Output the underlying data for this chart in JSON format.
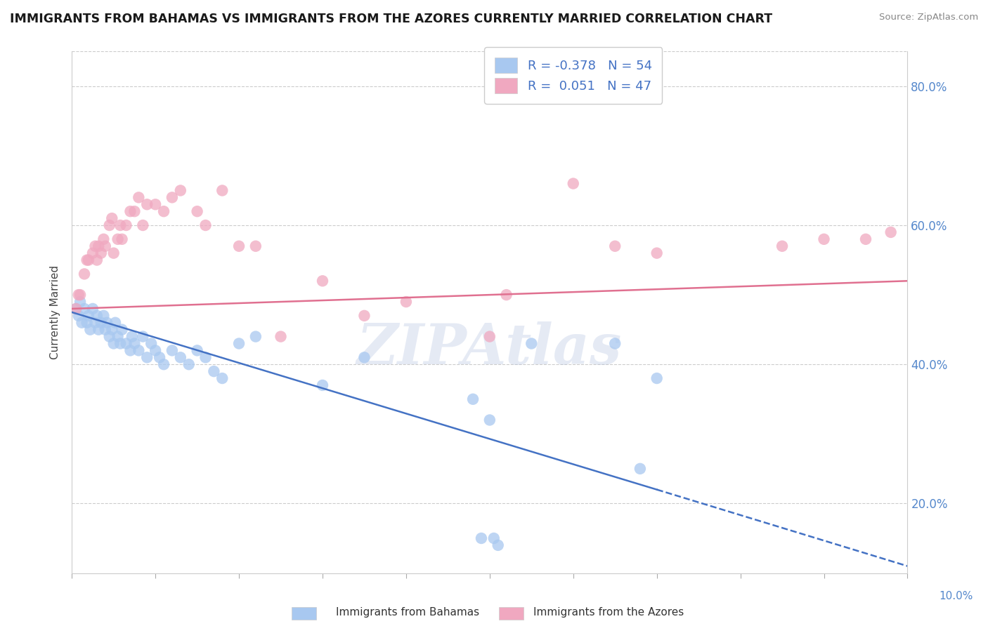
{
  "title": "IMMIGRANTS FROM BAHAMAS VS IMMIGRANTS FROM THE AZORES CURRENTLY MARRIED CORRELATION CHART",
  "source": "Source: ZipAtlas.com",
  "xlabel_blue": "Immigrants from Bahamas",
  "xlabel_pink": "Immigrants from the Azores",
  "ylabel": "Currently Married",
  "watermark": "ZIPAtlas",
  "legend_blue_R": "-0.378",
  "legend_blue_N": "54",
  "legend_pink_R": "0.051",
  "legend_pink_N": "47",
  "blue_color": "#a8c8f0",
  "pink_color": "#f0a8c0",
  "blue_line_color": "#4472c4",
  "pink_line_color": "#e07090",
  "xmin": 0.0,
  "xmax": 10.0,
  "ymin": 10.0,
  "ymax": 85.0,
  "yticks": [
    20,
    40,
    60,
    80
  ],
  "xticks": [
    0,
    1,
    2,
    3,
    4,
    5,
    6,
    7,
    8,
    9,
    10
  ],
  "blue_scatter_x": [
    0.05,
    0.08,
    0.1,
    0.12,
    0.15,
    0.18,
    0.2,
    0.22,
    0.25,
    0.28,
    0.3,
    0.32,
    0.35,
    0.38,
    0.4,
    0.42,
    0.45,
    0.48,
    0.5,
    0.52,
    0.55,
    0.58,
    0.6,
    0.65,
    0.7,
    0.72,
    0.75,
    0.8,
    0.85,
    0.9,
    0.95,
    1.0,
    1.05,
    1.1,
    1.2,
    1.3,
    1.4,
    1.5,
    1.6,
    1.7,
    1.8,
    2.0,
    2.2,
    3.0,
    3.5,
    4.8,
    5.0,
    5.1,
    5.5,
    6.5,
    6.8,
    7.0,
    4.9,
    5.05
  ],
  "blue_scatter_y": [
    48,
    47,
    49,
    46,
    48,
    46,
    47,
    45,
    48,
    46,
    47,
    45,
    46,
    47,
    45,
    46,
    44,
    45,
    43,
    46,
    44,
    43,
    45,
    43,
    42,
    44,
    43,
    42,
    44,
    41,
    43,
    42,
    41,
    40,
    42,
    41,
    40,
    42,
    41,
    39,
    38,
    43,
    44,
    37,
    41,
    35,
    32,
    14,
    43,
    43,
    25,
    38,
    15,
    15
  ],
  "pink_scatter_x": [
    0.05,
    0.08,
    0.1,
    0.15,
    0.18,
    0.2,
    0.25,
    0.28,
    0.3,
    0.32,
    0.35,
    0.38,
    0.4,
    0.45,
    0.48,
    0.5,
    0.55,
    0.58,
    0.6,
    0.65,
    0.7,
    0.75,
    0.8,
    0.85,
    0.9,
    1.0,
    1.1,
    1.2,
    1.3,
    1.5,
    1.6,
    1.8,
    2.0,
    2.2,
    2.5,
    3.0,
    3.5,
    4.0,
    5.0,
    5.2,
    6.0,
    6.5,
    7.0,
    8.5,
    9.0,
    9.5,
    9.8
  ],
  "pink_scatter_y": [
    48,
    50,
    50,
    53,
    55,
    55,
    56,
    57,
    55,
    57,
    56,
    58,
    57,
    60,
    61,
    56,
    58,
    60,
    58,
    60,
    62,
    62,
    64,
    60,
    63,
    63,
    62,
    64,
    65,
    62,
    60,
    65,
    57,
    57,
    44,
    52,
    47,
    49,
    44,
    50,
    66,
    57,
    56,
    57,
    58,
    58,
    59
  ],
  "blue_trendline_x0": 0.0,
  "blue_trendline_y0": 47.5,
  "blue_trendline_x1": 7.0,
  "blue_trendline_y1": 22.0,
  "blue_dash_x0": 7.0,
  "blue_dash_y0": 22.0,
  "blue_dash_x1": 10.0,
  "blue_dash_y1": 11.0,
  "pink_trendline_x0": 0.0,
  "pink_trendline_y0": 48.0,
  "pink_trendline_x1": 10.0,
  "pink_trendline_y1": 52.0
}
